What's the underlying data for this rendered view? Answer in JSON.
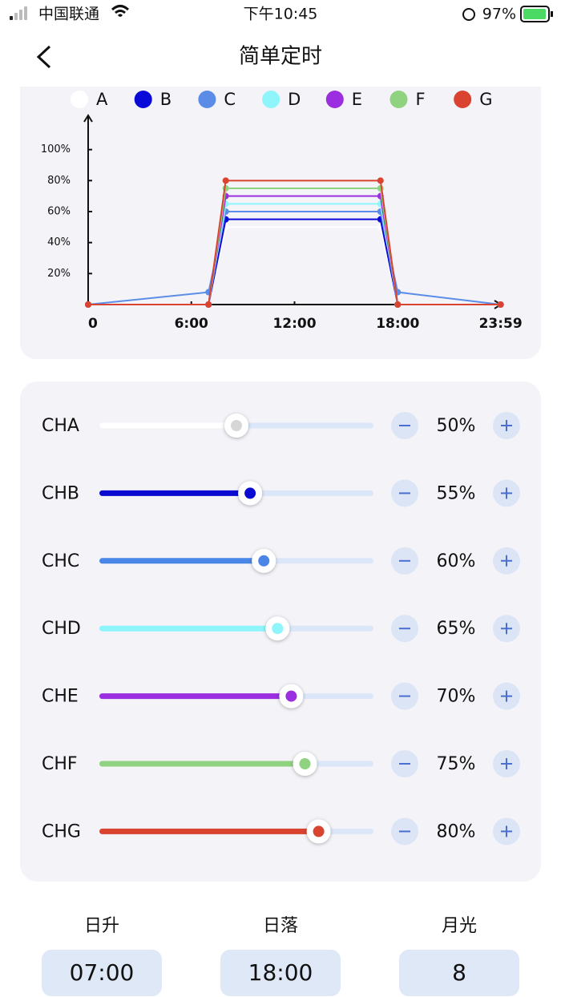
{
  "status_bar": {
    "carrier": "中国联通",
    "time": "下午10:45",
    "battery": "97%"
  },
  "header": {
    "title": "简单定时"
  },
  "chart_data": {
    "type": "line",
    "x": [
      0,
      7,
      8,
      17,
      18,
      23.983
    ],
    "xlim": [
      0,
      24
    ],
    "xticks": [
      0,
      {
        "value": 6,
        "label": "6:00"
      },
      {
        "value": 12,
        "label": "12:00"
      },
      {
        "value": 18,
        "label": "18:00"
      },
      {
        "value": 23.983,
        "label": "23:59"
      }
    ],
    "ylim": [
      0,
      120
    ],
    "yticks": [
      {
        "value": 20,
        "label": "20%"
      },
      {
        "value": 40,
        "label": "40%"
      },
      {
        "value": 60,
        "label": "60%"
      },
      {
        "value": 80,
        "label": "80%"
      },
      {
        "value": 100,
        "label": "100%"
      }
    ],
    "series": [
      {
        "name": "A",
        "color": "#ffffff",
        "values": [
          0,
          0,
          50,
          50,
          0,
          0
        ]
      },
      {
        "name": "B",
        "color": "#0a0ad8",
        "values": [
          0,
          0,
          55,
          55,
          0,
          0
        ]
      },
      {
        "name": "C",
        "color": "#5b8de8",
        "values": [
          0,
          8,
          60,
          60,
          8,
          0
        ]
      },
      {
        "name": "D",
        "color": "#8ef5fb",
        "values": [
          0,
          0,
          65,
          65,
          0,
          0
        ]
      },
      {
        "name": "E",
        "color": "#9b2ee0",
        "values": [
          0,
          0,
          70,
          70,
          0,
          0
        ]
      },
      {
        "name": "F",
        "color": "#8fd27f",
        "values": [
          0,
          0,
          75,
          75,
          0,
          0
        ]
      },
      {
        "name": "G",
        "color": "#d9432f",
        "values": [
          0,
          0,
          80,
          80,
          0,
          0
        ]
      }
    ]
  },
  "channels": {
    "labels": [
      "CHA",
      "CHB",
      "CHC",
      "CHD",
      "CHE",
      "CHF",
      "CHG"
    ],
    "values": [
      50,
      55,
      60,
      65,
      70,
      75,
      80
    ],
    "value_labels": [
      "50%",
      "55%",
      "60%",
      "65%",
      "70%",
      "75%",
      "80%"
    ],
    "colors": [
      "#d6d6d6",
      "#0a0ad0",
      "#4a86e8",
      "#8ef5fb",
      "#9b2ee0",
      "#8fd27f",
      "#d9432f"
    ]
  },
  "schedule": [
    {
      "label": "日升",
      "value": "07:00"
    },
    {
      "label": "日落",
      "value": "18:00"
    },
    {
      "label": "月光",
      "value": "8"
    }
  ]
}
